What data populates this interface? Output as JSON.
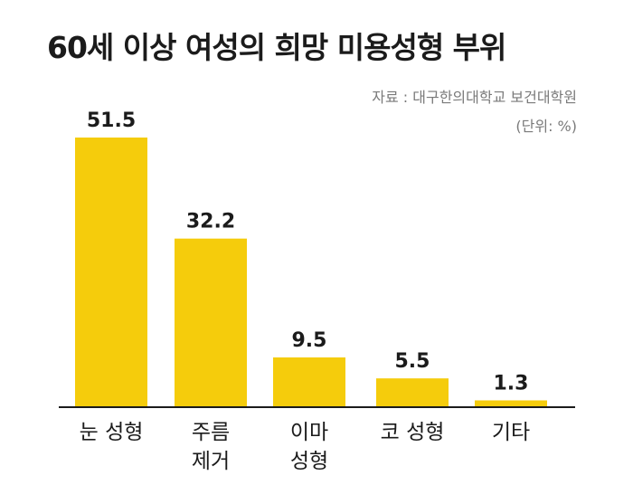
{
  "title": "60세 이상 여성의 희망 미용성형 부위",
  "source": "자료 : 대구한의대학교 보건대학원",
  "unit": "(단위: %)",
  "chart_data": {
    "type": "bar",
    "title": "60세 이상 여성의 희망 미용성형 부위",
    "categories": [
      [
        "눈 성형"
      ],
      [
        "주름",
        "제거"
      ],
      [
        "이마",
        "성형"
      ],
      [
        "코 성형"
      ],
      [
        "기타"
      ]
    ],
    "values": [
      51.5,
      32.2,
      9.5,
      5.5,
      1.3
    ],
    "value_labels": [
      "51.5",
      "32.2",
      "9.5",
      "5.5",
      "1.3"
    ],
    "xlabel": "",
    "ylabel": "",
    "ylim": [
      0,
      51.5
    ],
    "grid": false,
    "bar_color": "#f5cc0c"
  }
}
